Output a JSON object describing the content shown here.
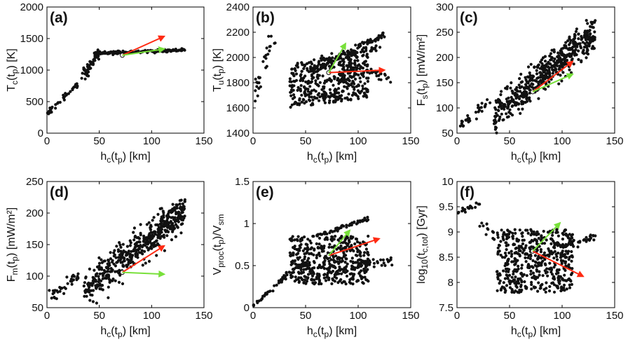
{
  "figure": {
    "x_axis_label": {
      "base": "h",
      "sub1": "c",
      "mid": "(t",
      "sub2": "p",
      "tail": ") [km]"
    },
    "colors": {
      "points": "#111111",
      "red_arrow": "#ff2a12",
      "green_arrow": "#78e03a",
      "axes": "#000000"
    }
  },
  "chart_data": [
    {
      "type": "scatter",
      "panel_label": "(a)",
      "title": "",
      "ylabel": {
        "base": "T",
        "sub1": "c",
        "mid": "(t",
        "sub2": "p",
        "tail": ") [K]"
      },
      "xlim": [
        0,
        150
      ],
      "ylim": [
        0,
        2000
      ],
      "xticks": [
        0,
        50,
        100,
        150
      ],
      "xtick_labels": [
        "0",
        "50",
        "100",
        "150"
      ],
      "yticks": [
        0,
        500,
        1000,
        1500,
        2000
      ],
      "ytick_labels": [
        "0",
        "500",
        "1000",
        "1500",
        "2000"
      ],
      "ref_point": [
        72,
        1235
      ],
      "arrows": [
        {
          "color": "red",
          "x0": 72,
          "y0": 1235,
          "x1": 112,
          "y1": 1535
        },
        {
          "color": "green",
          "x0": 72,
          "y0": 1235,
          "x1": 112,
          "y1": 1335
        }
      ],
      "clusters": [
        {
          "kind": "line",
          "n": 45,
          "x0": 0,
          "y0": 300,
          "x1": 40,
          "y1": 950,
          "jx": 1.5,
          "jy": 45
        },
        {
          "kind": "line",
          "n": 40,
          "x0": 35,
          "y0": 950,
          "x1": 50,
          "y1": 1270,
          "jx": 2.5,
          "jy": 60
        },
        {
          "kind": "line",
          "n": 160,
          "x0": 45,
          "y0": 1265,
          "x1": 132,
          "y1": 1320,
          "jx": 1.5,
          "jy": 22
        }
      ]
    },
    {
      "type": "scatter",
      "panel_label": "(b)",
      "title": "",
      "ylabel": {
        "base": "T",
        "sub1": "u",
        "mid": "(t",
        "sub2": "p",
        "tail": ") [K]"
      },
      "xlim": [
        0,
        150
      ],
      "ylim": [
        1400,
        2400
      ],
      "xticks": [
        0,
        50,
        100,
        150
      ],
      "xtick_labels": [
        "0",
        "50",
        "100",
        "150"
      ],
      "yticks": [
        1400,
        1600,
        1800,
        2000,
        2200,
        2400
      ],
      "ytick_labels": [
        "1400",
        "1600",
        "1800",
        "2000",
        "2200",
        "2400"
      ],
      "ref_point": [
        72,
        1880
      ],
      "arrows": [
        {
          "color": "red",
          "x0": 72,
          "y0": 1880,
          "x1": 125,
          "y1": 1900
        },
        {
          "color": "green",
          "x0": 72,
          "y0": 1880,
          "x1": 88,
          "y1": 2110
        }
      ],
      "clusters": [
        {
          "kind": "line",
          "n": 28,
          "x0": 0,
          "y0": 1640,
          "x1": 18,
          "y1": 2160,
          "jx": 3,
          "jy": 90
        },
        {
          "kind": "box",
          "n": 420,
          "xmin": 35,
          "xmax": 110,
          "ymin": 1600,
          "ymax": 1950,
          "slope": 2.2
        },
        {
          "kind": "line",
          "n": 80,
          "x0": 55,
          "y0": 1900,
          "x1": 125,
          "y1": 2180,
          "jx": 2,
          "jy": 25
        },
        {
          "kind": "line",
          "n": 60,
          "x0": 60,
          "y0": 1980,
          "x1": 122,
          "y1": 2080,
          "jx": 2,
          "jy": 20
        },
        {
          "kind": "line",
          "n": 40,
          "x0": 90,
          "y0": 1950,
          "x1": 132,
          "y1": 1830,
          "jx": 4,
          "jy": 40
        }
      ]
    },
    {
      "type": "scatter",
      "panel_label": "(c)",
      "title": "",
      "ylabel": {
        "base": "F",
        "sub1": "s",
        "mid": "(t",
        "sub2": "p",
        "tail": ") [mW/m²]"
      },
      "xlim": [
        0,
        150
      ],
      "ylim": [
        50,
        300
      ],
      "xticks": [
        0,
        50,
        100,
        150
      ],
      "xtick_labels": [
        "0",
        "50",
        "100",
        "150"
      ],
      "yticks": [
        50,
        100,
        150,
        200,
        250,
        300
      ],
      "ytick_labels": [
        "50",
        "100",
        "150",
        "200",
        "250",
        "300"
      ],
      "ref_point": [
        72,
        132
      ],
      "arrows": [
        {
          "color": "red",
          "x0": 72,
          "y0": 132,
          "x1": 110,
          "y1": 192
        },
        {
          "color": "green",
          "x0": 72,
          "y0": 132,
          "x1": 110,
          "y1": 167
        }
      ],
      "clusters": [
        {
          "kind": "line",
          "n": 35,
          "x0": 0,
          "y0": 60,
          "x1": 30,
          "y1": 110,
          "jx": 3,
          "jy": 10
        },
        {
          "kind": "trend",
          "n": 520,
          "xmin": 35,
          "xmax": 132,
          "y_at_xmin": 85,
          "y_at_xmax": 250,
          "spread": 32
        }
      ]
    },
    {
      "type": "scatter",
      "panel_label": "(d)",
      "title": "",
      "ylabel": {
        "base": "F",
        "sub1": "m",
        "mid": "(t",
        "sub2": "p",
        "tail": ") [mW/m²]"
      },
      "xlim": [
        0,
        150
      ],
      "ylim": [
        50,
        250
      ],
      "xticks": [
        0,
        50,
        100,
        150
      ],
      "xtick_labels": [
        "0",
        "50",
        "100",
        "150"
      ],
      "yticks": [
        50,
        100,
        150,
        200,
        250
      ],
      "ytick_labels": [
        "50",
        "100",
        "150",
        "200",
        "250"
      ],
      "ref_point": [
        72,
        106
      ],
      "arrows": [
        {
          "color": "red",
          "x0": 72,
          "y0": 106,
          "x1": 112,
          "y1": 148
        },
        {
          "color": "green",
          "x0": 72,
          "y0": 106,
          "x1": 112,
          "y1": 103
        }
      ],
      "clusters": [
        {
          "kind": "line",
          "n": 35,
          "x0": 0,
          "y0": 65,
          "x1": 30,
          "y1": 100,
          "jx": 3,
          "jy": 10
        },
        {
          "kind": "trend",
          "n": 520,
          "xmin": 35,
          "xmax": 132,
          "y_at_xmin": 75,
          "y_at_xmax": 205,
          "spread": 26
        }
      ]
    },
    {
      "type": "scatter",
      "panel_label": "(e)",
      "title": "",
      "ylabel": {
        "base": "V",
        "sub1": "proc",
        "mid": "(t",
        "sub2": "p",
        "tail": ")/V",
        "sub3": "sm"
      },
      "xlim": [
        0,
        150
      ],
      "ylim": [
        0,
        1.5
      ],
      "xticks": [
        0,
        50,
        100,
        150
      ],
      "xtick_labels": [
        "0",
        "50",
        "100",
        "150"
      ],
      "yticks": [
        0,
        0.5,
        1,
        1.5
      ],
      "ytick_labels": [
        "0",
        "0.5",
        "1",
        "1.5"
      ],
      "ref_point": [
        72,
        0.62
      ],
      "arrows": [
        {
          "color": "red",
          "x0": 72,
          "y0": 0.62,
          "x1": 120,
          "y1": 0.82
        },
        {
          "color": "green",
          "x0": 72,
          "y0": 0.62,
          "x1": 92,
          "y1": 0.92
        }
      ],
      "clusters": [
        {
          "kind": "line",
          "n": 45,
          "x0": 0,
          "y0": 0.02,
          "x1": 40,
          "y1": 0.48,
          "jx": 1.5,
          "jy": 0.03
        },
        {
          "kind": "box",
          "n": 480,
          "xmin": 35,
          "xmax": 110,
          "ymin": 0.28,
          "ymax": 0.85,
          "slope": 0.003
        },
        {
          "kind": "line",
          "n": 60,
          "x0": 60,
          "y0": 0.85,
          "x1": 110,
          "y1": 1.06,
          "jx": 2,
          "jy": 0.02
        },
        {
          "kind": "line",
          "n": 35,
          "x0": 95,
          "y0": 0.5,
          "x1": 132,
          "y1": 0.55,
          "jx": 3,
          "jy": 0.05
        }
      ]
    },
    {
      "type": "scatter",
      "panel_label": "(f)",
      "title": "",
      "ylabel": {
        "base": "log",
        "sub1": "10",
        "mid": "(t",
        "sub2": "c,tot",
        "tail": ") [Gyr]"
      },
      "xlim": [
        0,
        150
      ],
      "ylim": [
        7.5,
        10
      ],
      "xticks": [
        0,
        50,
        100,
        150
      ],
      "xtick_labels": [
        "0",
        "50",
        "100",
        "150"
      ],
      "yticks": [
        7.5,
        8,
        8.5,
        9,
        9.5,
        10
      ],
      "ytick_labels": [
        "7.5",
        "8",
        "8.5",
        "9",
        "9.5",
        "10"
      ],
      "ref_point": [
        72,
        8.62
      ],
      "arrows": [
        {
          "color": "red",
          "x0": 72,
          "y0": 8.62,
          "x1": 120,
          "y1": 8.12
        },
        {
          "color": "green",
          "x0": 72,
          "y0": 8.62,
          "x1": 98,
          "y1": 9.18
        }
      ],
      "clusters": [
        {
          "kind": "line",
          "n": 18,
          "x0": 2,
          "y0": 9.4,
          "x1": 22,
          "y1": 9.55,
          "jx": 3,
          "jy": 0.06
        },
        {
          "kind": "line",
          "n": 14,
          "x0": 20,
          "y0": 9.3,
          "x1": 40,
          "y1": 8.8,
          "jx": 3,
          "jy": 0.1
        },
        {
          "kind": "box",
          "n": 500,
          "xmin": 38,
          "xmax": 110,
          "ymin": 7.8,
          "ymax": 9.05,
          "slope": -0.004
        },
        {
          "kind": "line",
          "n": 40,
          "x0": 90,
          "y0": 8.7,
          "x1": 132,
          "y1": 8.9,
          "jx": 3,
          "jy": 0.08
        }
      ]
    }
  ]
}
